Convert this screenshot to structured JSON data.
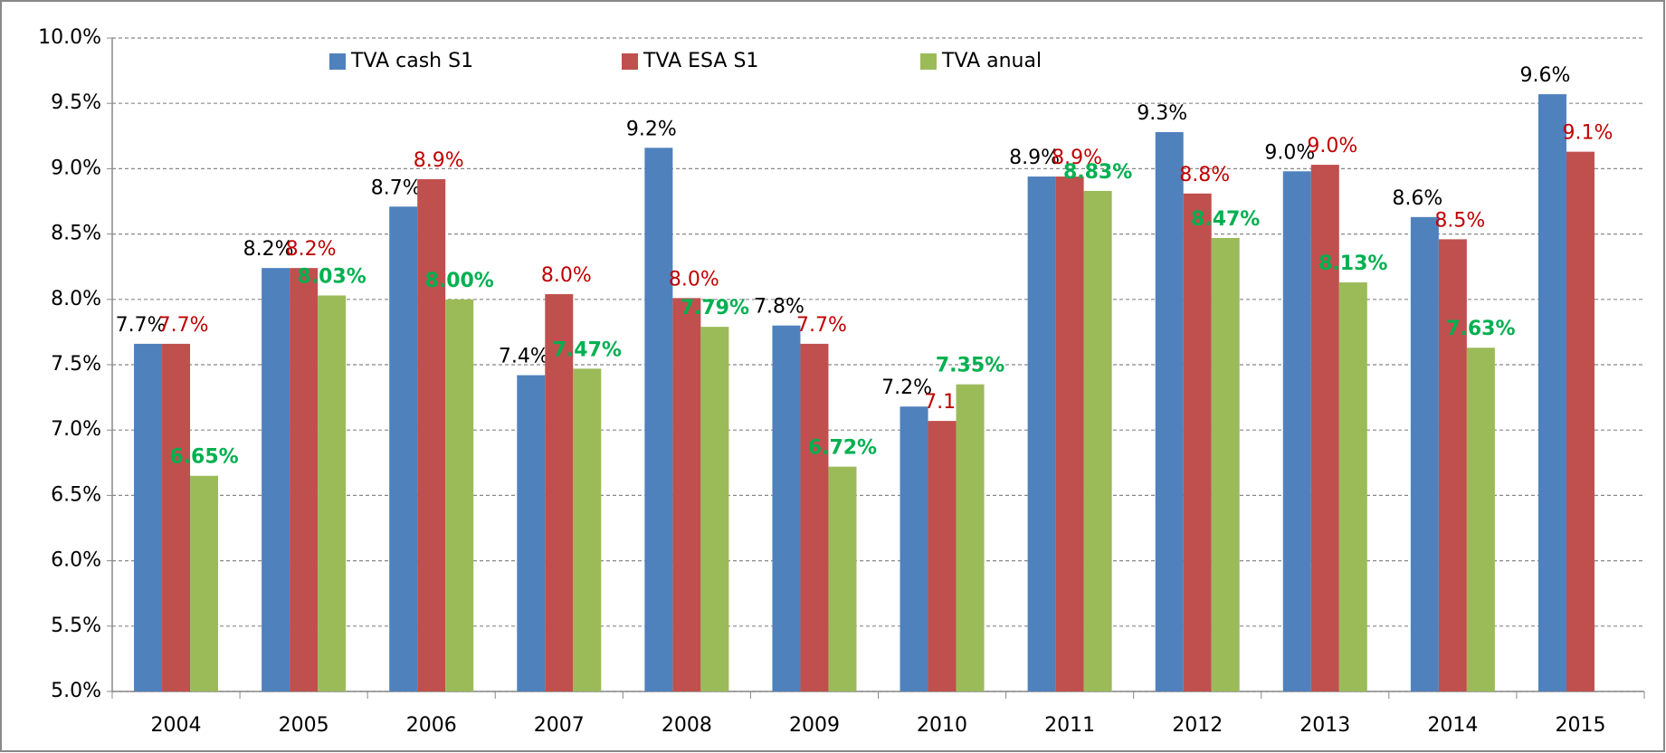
{
  "chart_data": {
    "type": "bar",
    "categories": [
      "2004",
      "2005",
      "2006",
      "2007",
      "2008",
      "2009",
      "2010",
      "2011",
      "2012",
      "2013",
      "2014",
      "2015"
    ],
    "series": [
      {
        "name": "TVA cash S1",
        "color": "#4f81bd",
        "label_color": "#000000",
        "values": [
          7.66,
          8.24,
          8.71,
          7.42,
          9.16,
          7.8,
          7.18,
          8.94,
          9.28,
          8.98,
          8.63,
          9.57
        ],
        "value_labels": [
          "7.7%",
          "8.2%",
          "8.7%",
          "7.4%",
          "9.2%",
          "7.8%",
          "7.2%",
          "8.9%",
          "9.3%",
          "9.0%",
          "8.6%",
          "9.6%"
        ]
      },
      {
        "name": "TVA ESA S1",
        "color": "#c0504d",
        "label_color": "#c00000",
        "values": [
          7.66,
          8.24,
          8.92,
          8.04,
          8.01,
          7.66,
          7.07,
          8.94,
          8.81,
          9.03,
          8.46,
          9.13
        ],
        "value_labels": [
          "7.7%",
          "8.2%",
          "8.9%",
          "8.0%",
          "8.0%",
          "7.7%",
          "7.1%",
          "8.9%",
          "8.8%",
          "9.0%",
          "8.5%",
          "9.1%"
        ]
      },
      {
        "name": "TVA anual",
        "color": "#9bbb59",
        "label_color": "#00b050",
        "values": [
          6.65,
          8.03,
          8.0,
          7.47,
          7.79,
          6.72,
          7.35,
          8.83,
          8.47,
          8.13,
          7.63,
          null
        ],
        "value_labels": [
          "6.65%",
          "8.03%",
          "8.00%",
          "7.47%",
          "7.79%",
          "6.72%",
          "7.35%",
          "8.83%",
          "8.47%",
          "8.13%",
          "7.63%",
          null
        ]
      }
    ],
    "ylim": [
      5.0,
      10.0
    ],
    "yticks": [
      {
        "value": 5.0,
        "label": "5.0%"
      },
      {
        "value": 5.5,
        "label": "5.5%"
      },
      {
        "value": 6.0,
        "label": "6.0%"
      },
      {
        "value": 6.5,
        "label": "6.5%"
      },
      {
        "value": 7.0,
        "label": "7.0%"
      },
      {
        "value": 7.5,
        "label": "7.5%"
      },
      {
        "value": 8.0,
        "label": "8.0%"
      },
      {
        "value": 8.5,
        "label": "8.5%"
      },
      {
        "value": 9.0,
        "label": "9.0%"
      },
      {
        "value": 9.5,
        "label": "9.5%"
      },
      {
        "value": 10.0,
        "label": "10.0%"
      }
    ],
    "grid": true,
    "legend": "top"
  }
}
